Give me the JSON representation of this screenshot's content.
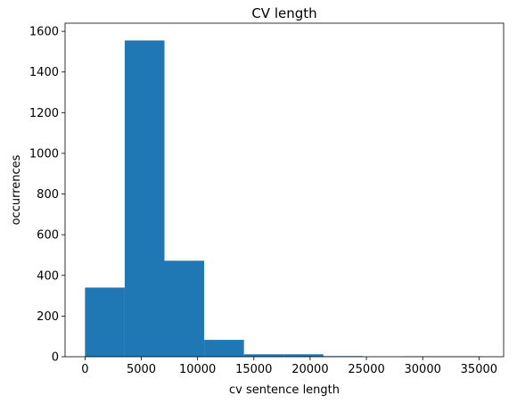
{
  "chart_data": {
    "type": "bar",
    "subtype": "histogram",
    "title": "CV length",
    "xlabel": "cv sentence length",
    "ylabel": "occurrences",
    "xlim": [
      -1770,
      37190
    ],
    "ylim": [
      0,
      1640
    ],
    "x_ticks": [
      0,
      5000,
      10000,
      15000,
      20000,
      25000,
      30000,
      35000
    ],
    "x_tick_labels": [
      "0",
      "5000",
      "10000",
      "15000",
      "20000",
      "25000",
      "30000",
      "35000"
    ],
    "y_ticks": [
      0,
      200,
      400,
      600,
      800,
      1000,
      1200,
      1400,
      1600
    ],
    "y_tick_labels": [
      "0",
      "200",
      "400",
      "600",
      "800",
      "1000",
      "1200",
      "1400",
      "1600"
    ],
    "bin_edges": [
      0,
      3530,
      7060,
      10590,
      14120,
      17650,
      21180,
      24710,
      28240,
      31770,
      35300
    ],
    "series": [
      {
        "values": [
          340,
          1555,
          472,
          83,
          12,
          12,
          3,
          0,
          2,
          2
        ],
        "color": "#1f77b4"
      }
    ],
    "grid": false,
    "legend": "none"
  }
}
